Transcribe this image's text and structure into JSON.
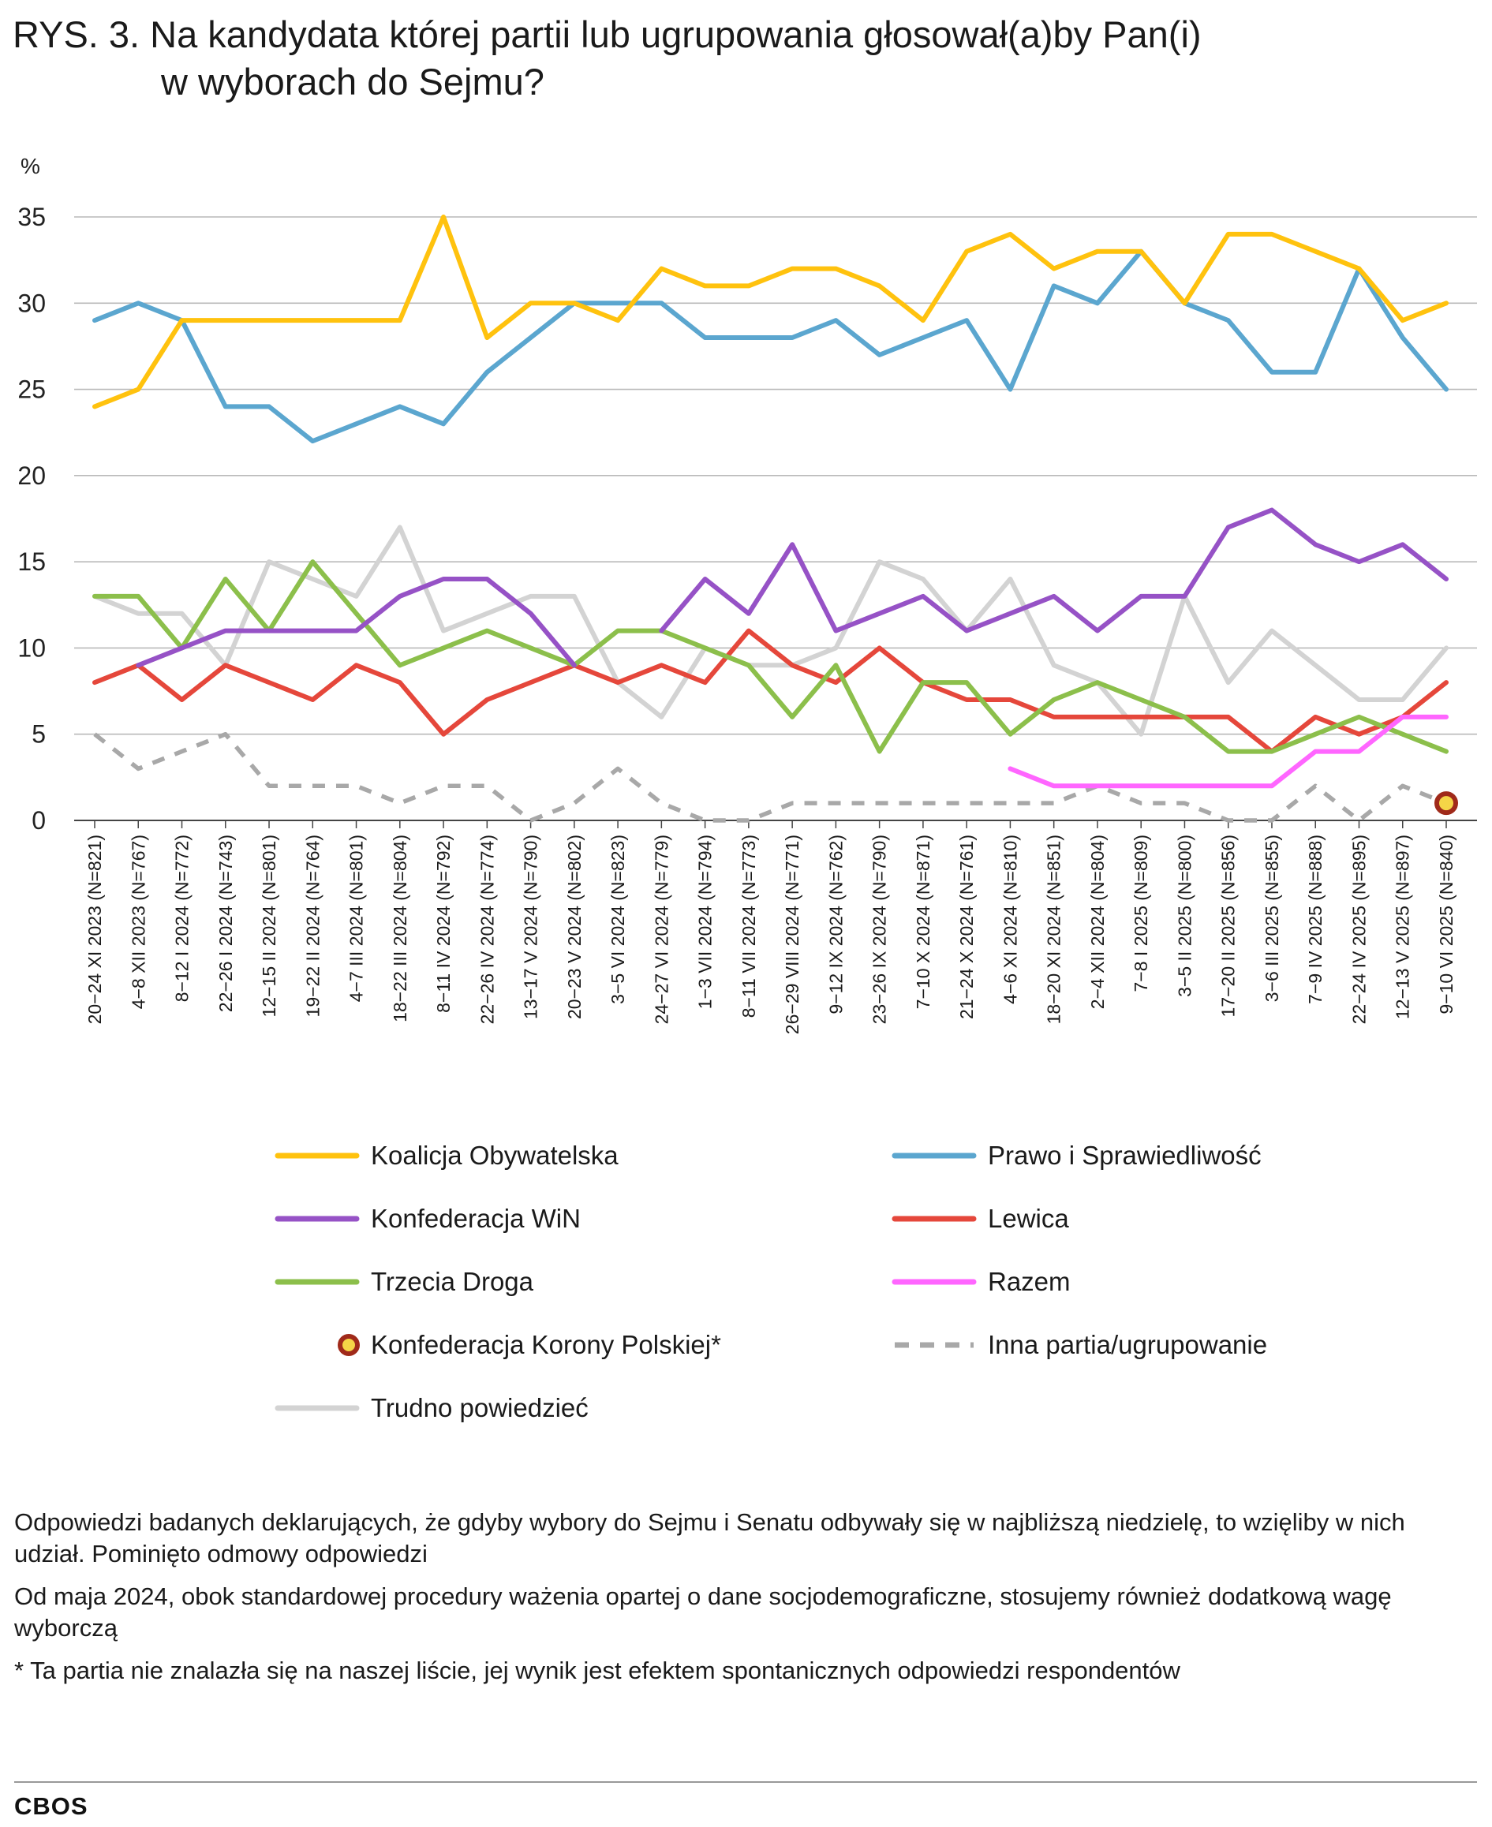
{
  "title": {
    "line1": "RYS. 3. Na kandydata której partii lub ugrupowania głosował(a)by Pan(i)",
    "line2": "w wyborach do Sejmu?"
  },
  "chart_data": {
    "type": "line",
    "ylabel": "%",
    "ylim": [
      0,
      35
    ],
    "yticks": [
      0,
      5,
      10,
      15,
      20,
      25,
      30,
      35
    ],
    "grid": true,
    "legend_position": "bottom",
    "categories": [
      "20−24 XI 2023 (N=821)",
      "4−8 XII 2023 (N=767)",
      "8−12 I 2024 (N=772)",
      "22−26 I 2024 (N=743)",
      "12−15 II 2024 (N=801)",
      "19−22 II 2024 (N=764)",
      "4−7 III 2024 (N=801)",
      "18−22 III 2024 (N=804)",
      "8−11 IV 2024 (N=792)",
      "22−26 IV 2024 (N=774)",
      "13−17 V 2024 (N=790)",
      "20−23 V 2024 (N=802)",
      "3−5 VI 2024 (N=823)",
      "24−27 VI 2024 (N=779)",
      "1−3 VII 2024 (N=794)",
      "8−11 VII 2024 (N=773)",
      "26−29 VIII 2024 (N=771)",
      "9−12 IX 2024 (N=762)",
      "23−26 IX 2024 (N=790)",
      "7−10 X 2024 (N=871)",
      "21−24 X 2024 (N=761)",
      "4−6 XI 2024 (N=810)",
      "18−20 XI 2024 (N=851)",
      "2−4 XII 2024 (N=804)",
      "7−8 I 2025 (N=809)",
      "3−5 II 2025 (N=800)",
      "17−20 II 2025 (N=856)",
      "3−6 III 2025 (N=855)",
      "7−9 IV 2025 (N=888)",
      "22−24 IV 2025 (N=895)",
      "12−13 V 2025 (N=897)",
      "9−10 VI 2025 (N=840)"
    ],
    "series": [
      {
        "name": "Koalicja Obywatelska",
        "color": "#FFC20E",
        "style": "solid",
        "values": [
          24,
          25,
          29,
          29,
          29,
          29,
          29,
          29,
          35,
          28,
          30,
          30,
          29,
          32,
          31,
          31,
          32,
          32,
          31,
          29,
          33,
          34,
          32,
          33,
          33,
          30,
          34,
          34,
          33,
          32,
          29,
          30
        ]
      },
      {
        "name": "Prawo i Sprawiedliwość",
        "color": "#5BA6CF",
        "style": "solid",
        "values": [
          29,
          30,
          29,
          24,
          24,
          22,
          23,
          24,
          23,
          26,
          28,
          30,
          30,
          30,
          28,
          28,
          28,
          29,
          27,
          28,
          29,
          25,
          31,
          30,
          33,
          30,
          29,
          26,
          26,
          32,
          28,
          25
        ]
      },
      {
        "name": "Konfederacja WiN",
        "color": "#9652C6",
        "style": "solid",
        "values": [
          null,
          9,
          10,
          11,
          11,
          11,
          11,
          13,
          14,
          14,
          12,
          9,
          null,
          11,
          14,
          12,
          16,
          11,
          12,
          13,
          11,
          12,
          13,
          11,
          13,
          13,
          17,
          18,
          16,
          15,
          16,
          14
        ]
      },
      {
        "name": "Lewica",
        "color": "#E5473B",
        "style": "solid",
        "values": [
          8,
          9,
          7,
          9,
          8,
          7,
          9,
          8,
          5,
          7,
          8,
          9,
          8,
          9,
          8,
          11,
          9,
          8,
          10,
          8,
          7,
          7,
          6,
          6,
          6,
          6,
          6,
          4,
          6,
          5,
          6,
          8
        ]
      },
      {
        "name": "Trzecia Droga",
        "color": "#8CBF4B",
        "style": "solid",
        "values": [
          13,
          13,
          10,
          14,
          11,
          15,
          12,
          9,
          10,
          11,
          10,
          9,
          11,
          11,
          10,
          9,
          6,
          9,
          4,
          8,
          8,
          5,
          7,
          8,
          7,
          6,
          4,
          4,
          5,
          6,
          5,
          4
        ]
      },
      {
        "name": "Razem",
        "color": "#FF66FF",
        "style": "solid",
        "values": [
          null,
          null,
          null,
          null,
          null,
          null,
          null,
          null,
          null,
          null,
          null,
          null,
          null,
          null,
          null,
          null,
          null,
          null,
          null,
          null,
          null,
          3,
          2,
          2,
          2,
          2,
          2,
          2,
          4,
          4,
          6,
          6
        ]
      },
      {
        "name": "Konfederacja Korony Polskiej*",
        "color": "#F5D547",
        "edge_color": "#A02A1A",
        "style": "marker",
        "values": [
          null,
          null,
          null,
          null,
          null,
          null,
          null,
          null,
          null,
          null,
          null,
          null,
          null,
          null,
          null,
          null,
          null,
          null,
          null,
          null,
          null,
          null,
          null,
          null,
          null,
          null,
          null,
          null,
          null,
          null,
          null,
          1
        ]
      },
      {
        "name": "Inna partia/ugrupowanie",
        "color": "#A8A8A8",
        "style": "dashed",
        "values": [
          5,
          3,
          4,
          5,
          2,
          2,
          2,
          1,
          2,
          2,
          0,
          1,
          3,
          1,
          0,
          0,
          1,
          1,
          1,
          1,
          1,
          1,
          1,
          2,
          1,
          1,
          0,
          0,
          2,
          0,
          2,
          1
        ]
      },
      {
        "name": "Trudno powiedzieć",
        "color": "#D3D3D3",
        "style": "solid",
        "values": [
          13,
          12,
          12,
          9,
          15,
          14,
          13,
          17,
          11,
          12,
          13,
          13,
          8,
          6,
          10,
          9,
          9,
          10,
          15,
          14,
          11,
          14,
          9,
          8,
          5,
          13,
          8,
          11,
          9,
          7,
          7,
          10
        ]
      }
    ]
  },
  "notes": {
    "note1": "Odpowiedzi badanych deklarujących, że gdyby wybory do Sejmu i Senatu odbywały się w najbliższą niedzielę, to wzięliby w nich udział. Pominięto odmowy odpowiedzi",
    "note2": "Od maja 2024, obok standardowej procedury ważenia opartej o dane socjodemograficzne, stosujemy również dodatkową wagę wyborczą",
    "note3": "* Ta partia nie znalazła się na naszej liście, jej wynik jest efektem spontanicznych odpowiedzi respondentów"
  },
  "footer": {
    "brand": "CBOS"
  }
}
